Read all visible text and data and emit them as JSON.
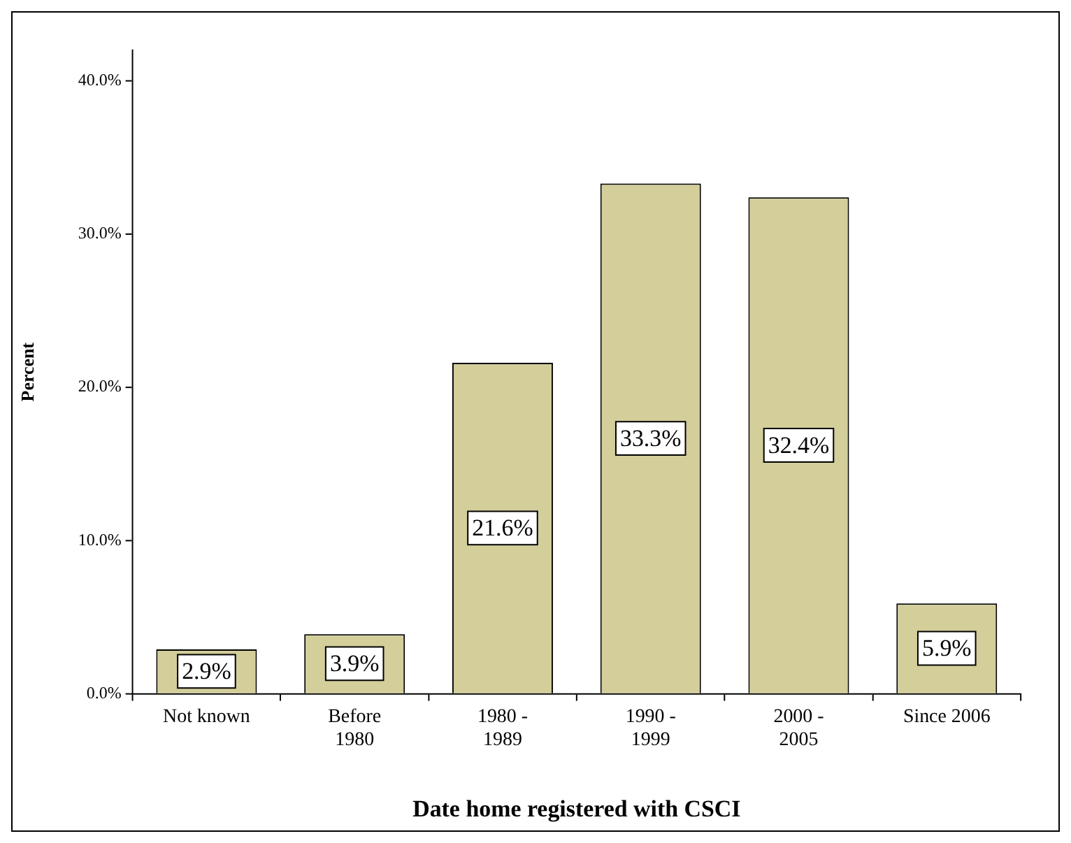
{
  "chart_data": {
    "type": "bar",
    "xlabel": "Date home registered with CSCI",
    "ylabel": "Percent",
    "categories": [
      "Not known",
      "Before 1980",
      "1980 - 1989",
      "1990 - 1999",
      "2000 - 2005",
      "Since 2006"
    ],
    "values": [
      2.9,
      3.9,
      21.6,
      33.3,
      32.4,
      5.9
    ],
    "value_labels": [
      "2.9%",
      "3.9%",
      "21.6%",
      "33.3%",
      "32.4%",
      "5.9%"
    ],
    "color": "#d3ce9a",
    "ylim": [
      0,
      42
    ],
    "yticks": [
      {
        "value": 0,
        "label": "0.0%"
      },
      {
        "value": 10,
        "label": "10.0%"
      },
      {
        "value": 20,
        "label": "20.0%"
      },
      {
        "value": 30,
        "label": "30.0%"
      },
      {
        "value": 40,
        "label": "40.0%"
      }
    ],
    "legend": false
  }
}
